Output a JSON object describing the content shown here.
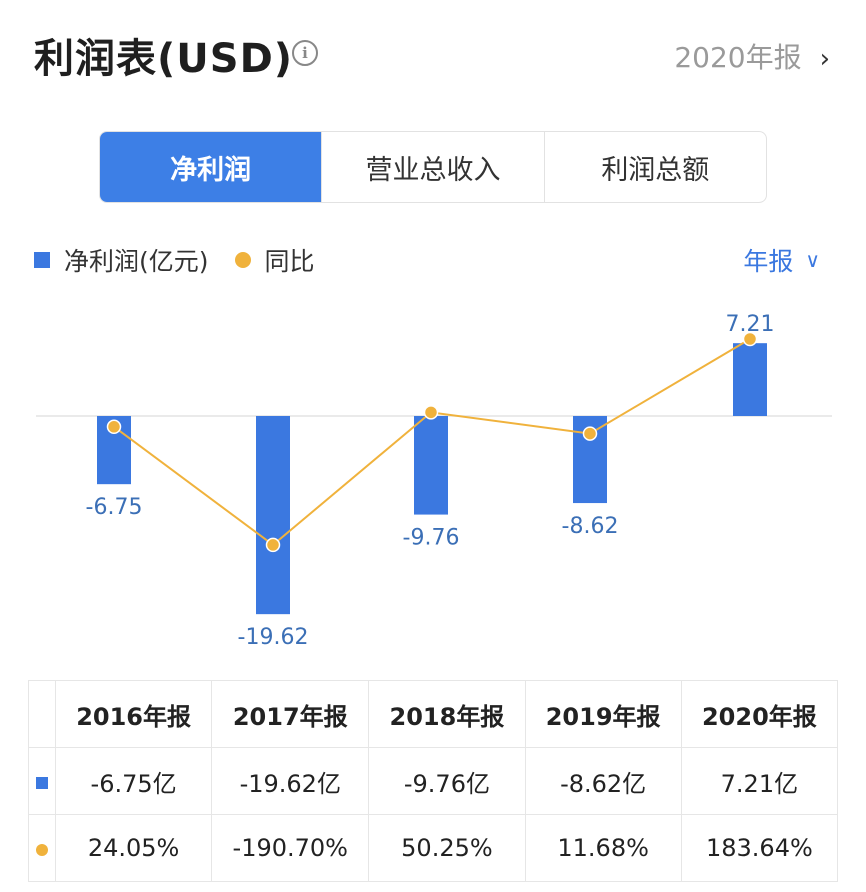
{
  "header": {
    "title": "利润表(USD)",
    "period_link": "2020年报",
    "chevron": "›"
  },
  "tabs": [
    {
      "label": "净利润",
      "active": true
    },
    {
      "label": "营业总收入",
      "active": false
    },
    {
      "label": "利润总额",
      "active": false
    }
  ],
  "legend": {
    "bar_label": "净利润(亿元)",
    "line_label": "同比"
  },
  "period_select": {
    "label": "年报",
    "chevron": "∨"
  },
  "colors": {
    "bar": "#3b78e0",
    "line": "#f0b23c",
    "positive": "#e0443c",
    "negative": "#2aa560",
    "accent": "#3d7fe6"
  },
  "chart_data": {
    "type": "bar",
    "categories": [
      "2016年报",
      "2017年报",
      "2018年报",
      "2019年报",
      "2020年报"
    ],
    "series": [
      {
        "name": "净利润(亿元)",
        "type": "bar",
        "values": [
          -6.75,
          -19.62,
          -9.76,
          -8.62,
          7.21
        ],
        "labels": [
          "-6.75",
          "-19.62",
          "-9.76",
          "-8.62",
          "7.21"
        ]
      },
      {
        "name": "同比",
        "type": "line",
        "values": [
          24.05,
          -190.7,
          50.25,
          11.68,
          183.64
        ]
      }
    ]
  },
  "table": {
    "headers": [
      "2016年报",
      "2017年报",
      "2018年报",
      "2019年报",
      "2020年报"
    ],
    "profit_row": [
      "-6.75亿",
      "-19.62亿",
      "-9.76亿",
      "-8.62亿",
      "7.21亿"
    ],
    "yoy_row": [
      "24.05%",
      "-190.70%",
      "50.25%",
      "11.68%",
      "183.64%"
    ]
  }
}
